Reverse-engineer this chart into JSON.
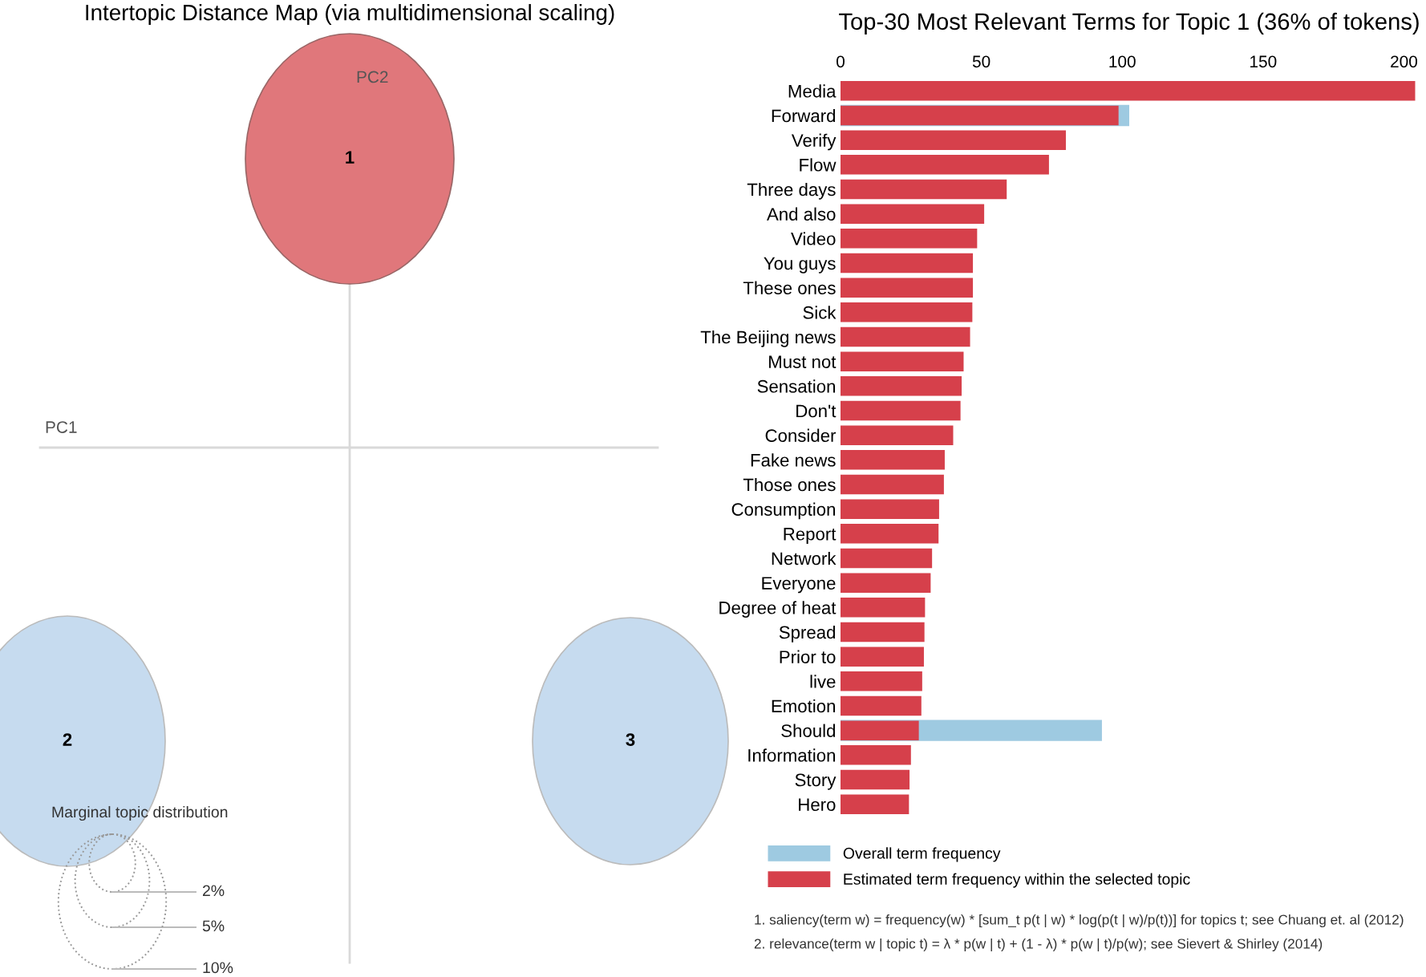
{
  "chart_data": [
    {
      "type": "other",
      "title": "Intertopic Distance Map (via multidimensional scaling)",
      "legend_title": "Marginal topic distribution",
      "categories": [
        "1",
        "2",
        "3"
      ],
      "colors": [
        "#e0777b",
        "#c6dbef",
        "#c6dbef"
      ],
      "xlabel": "PC1",
      "ylabel": "PC2",
      "annotations": [
        "2%",
        "5%",
        "10%"
      ]
    },
    {
      "type": "bar",
      "orientation": "horizontal",
      "title": "Top-30 Most Relevant Terms for Topic 1 (36% of tokens)",
      "categories": [
        "Media",
        "Forward",
        "Verify",
        "Flow",
        "Three days",
        "And also",
        "Video",
        "You guys",
        "These ones",
        "Sick",
        "The Beijing news",
        "Must not",
        "Sensation",
        "Don't",
        "Consider",
        "Fake news",
        "Those ones",
        "Consumption",
        "Report",
        "Network",
        "Everyone",
        "Degree of heat",
        "Spread",
        "Prior to",
        "live",
        "Emotion",
        "Should",
        "Information",
        "Story",
        "Hero"
      ],
      "series": [
        {
          "name": "Overall term frequency",
          "color": "#9ecae1",
          "values": [
            null,
            102.5,
            null,
            null,
            null,
            null,
            null,
            null,
            null,
            null,
            null,
            null,
            null,
            null,
            null,
            null,
            null,
            null,
            null,
            null,
            null,
            null,
            null,
            null,
            null,
            null,
            92.8,
            null,
            null,
            null
          ]
        },
        {
          "name": "Estimated term frequency within the selected topic",
          "color": "#d6404b",
          "values": [
            204,
            98.7,
            80,
            74,
            59,
            51,
            48.5,
            47,
            47,
            46.8,
            46,
            43.7,
            43,
            42.6,
            40,
            37,
            36.7,
            35,
            34.8,
            32.5,
            32,
            30,
            29.8,
            29.6,
            29,
            28.7,
            27.8,
            25,
            24.5,
            24.3
          ]
        }
      ],
      "xlim": [
        0,
        205
      ],
      "xticks": [
        0,
        50,
        100,
        150,
        200
      ],
      "grid": false,
      "legend": "bottom",
      "annotations": [
        "1. saliency(term w) = frequency(w) * [sum_t p(t | w) * log(p(t | w)/p(t))] for topics t; see Chuang et. al (2012)",
        "2. relevance(term w | topic t) = λ * p(w | t) + (1 - λ) * p(w | t)/p(w); see Sievert & Shirley (2014)"
      ]
    }
  ]
}
